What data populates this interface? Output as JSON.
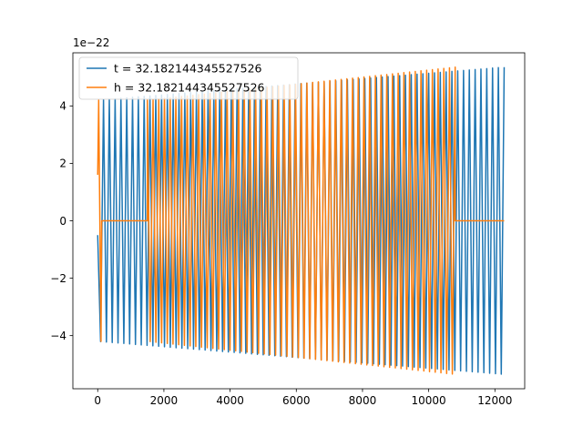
{
  "chart_data": {
    "type": "line",
    "title": "",
    "xlabel": "",
    "ylabel": "",
    "y_offset_label": "1e−22",
    "xlim": [
      -750,
      12900
    ],
    "ylim": [
      -5.85,
      5.85
    ],
    "x_ticks": [
      0,
      2000,
      4000,
      6000,
      8000,
      10000,
      12000
    ],
    "x_tick_labels": [
      "0",
      "2000",
      "4000",
      "6000",
      "8000",
      "10000",
      "12000"
    ],
    "y_ticks": [
      -4,
      -2,
      0,
      2,
      4
    ],
    "y_tick_labels": [
      "−4",
      "−2",
      "0",
      "2",
      "4"
    ],
    "grid": false,
    "legend_position": "upper-left",
    "series": [
      {
        "name": "t = 32.182144345527526",
        "color": "#1f77b4",
        "shape": "chirp",
        "x_start": 0,
        "x_end": 12280,
        "cycles": 70,
        "amplitude_start": 4.2,
        "amplitude_end": 5.35,
        "first_value": -0.5
      },
      {
        "name": "h = 32.182144345527526",
        "color": "#ff7f0e",
        "shape": "chirp_with_zero_pads",
        "x_start": 0,
        "x_end": 12280,
        "pad_before": [
          0,
          1500
        ],
        "signal": [
          1500,
          10800
        ],
        "pad_after": [
          10800,
          12280
        ],
        "leading_spike": [
          0,
          100
        ],
        "cycles": 54,
        "amplitude_start": 4.2,
        "amplitude_end": 5.35
      }
    ]
  }
}
